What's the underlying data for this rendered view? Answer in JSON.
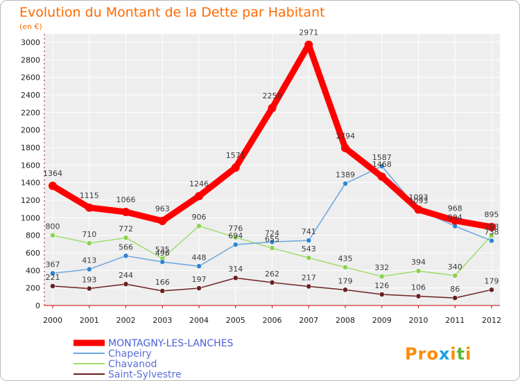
{
  "chart_data": {
    "type": "line",
    "title": "Evolution du Montant de la Dette par Habitant",
    "subtitle": "(en €)",
    "categories": [
      "2000",
      "2001",
      "2002",
      "2003",
      "2004",
      "2005",
      "2006",
      "2007",
      "2008",
      "2009",
      "2010",
      "2011",
      "2012"
    ],
    "ylim": [
      0,
      3000
    ],
    "yticks": [
      0,
      200,
      400,
      600,
      800,
      1000,
      1200,
      1400,
      1600,
      1800,
      2000,
      2200,
      2400,
      2600,
      2800,
      3000
    ],
    "grid": true,
    "legend_position": "bottom-left",
    "series": [
      {
        "name": "Saint-Sylvestre",
        "color": "#6b1f1f",
        "marker": "#6b1f1f",
        "values": [
          221,
          193,
          244,
          166,
          197,
          314,
          262,
          217,
          179,
          126,
          106,
          86,
          179
        ]
      },
      {
        "name": "Chavanod",
        "color": "#9dde6a",
        "marker": "#8cd24f",
        "values": [
          800,
          710,
          772,
          535,
          906,
          776,
          655,
          543,
          435,
          332,
          394,
          340,
          798
        ]
      },
      {
        "name": "Chapeiry",
        "color": "#6aa5dd",
        "marker": "#2d86d4",
        "values": [
          367,
          413,
          566,
          496,
          448,
          694,
          724,
          741,
          1389,
          1587,
          1093,
          904,
          738
        ]
      },
      {
        "name": "MONTAGNY-LES-LANCHES",
        "color": "#ff0000",
        "marker": "#ff0000",
        "values": [
          1364,
          1115,
          1066,
          963,
          1246,
          1571,
          2250,
          2971,
          1794,
          1468,
          1093,
          968,
          895
        ]
      }
    ]
  },
  "logo": {
    "text": "Proxiti",
    "letters": [
      {
        "char": "P",
        "color": "#ff8a00"
      },
      {
        "char": "r",
        "color": "#ff8a00"
      },
      {
        "char": "o",
        "color": "#ff8a00"
      },
      {
        "char": "x",
        "color": "#1aa1e0"
      },
      {
        "char": "i",
        "color": "#ff8a00"
      },
      {
        "char": "t",
        "color": "#58b83a"
      },
      {
        "char": "i",
        "color": "#ff8a00"
      }
    ]
  }
}
